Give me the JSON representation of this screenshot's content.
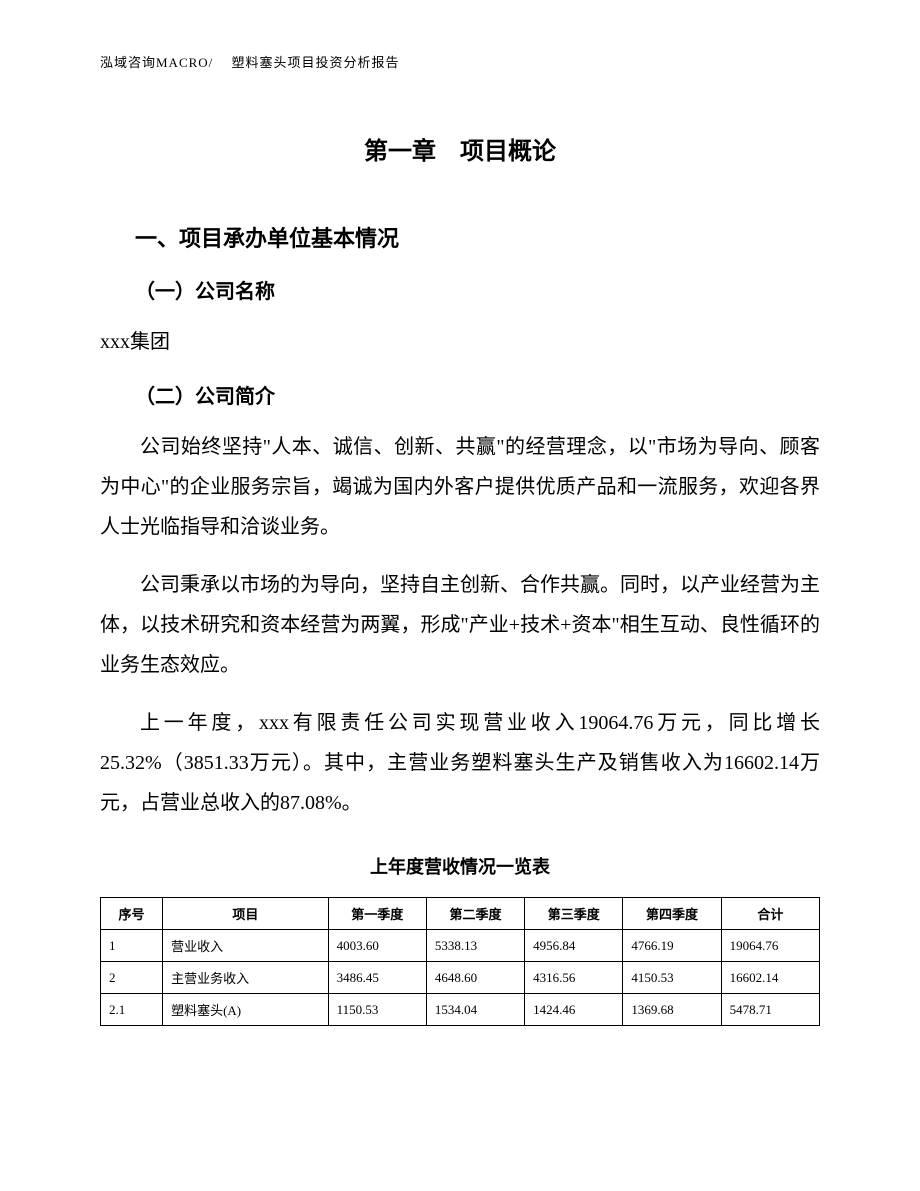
{
  "header": "泓域咨询MACRO/　 塑料塞头项目投资分析报告",
  "chapter_title": "第一章　项目概论",
  "section1_title": "一、项目承办单位基本情况",
  "subsection1_title": "（一）公司名称",
  "company_name": "xxx集团",
  "subsection2_title": "（二）公司简介",
  "paragraph1": "公司始终坚持\"人本、诚信、创新、共赢\"的经营理念，以\"市场为导向、顾客为中心\"的企业服务宗旨，竭诚为国内外客户提供优质产品和一流服务，欢迎各界人士光临指导和洽谈业务。",
  "paragraph2": "公司秉承以市场的为导向，坚持自主创新、合作共赢。同时，以产业经营为主体，以技术研究和资本经营为两翼，形成\"产业+技术+资本\"相生互动、良性循环的业务生态效应。",
  "paragraph3": "上一年度，xxx有限责任公司实现营业收入19064.76万元，同比增长25.32%（3851.33万元）。其中，主营业务塑料塞头生产及销售收入为16602.14万元，占营业总收入的87.08%。",
  "table_title": "上年度营收情况一览表",
  "table": {
    "columns": [
      "序号",
      "项目",
      "第一季度",
      "第二季度",
      "第三季度",
      "第四季度",
      "合计"
    ],
    "rows": [
      [
        "1",
        "营业收入",
        "4003.60",
        "5338.13",
        "4956.84",
        "4766.19",
        "19064.76"
      ],
      [
        "2",
        "主营业务收入",
        "3486.45",
        "4648.60",
        "4316.56",
        "4150.53",
        "16602.14"
      ],
      [
        "2.1",
        "塑料塞头(A)",
        "1150.53",
        "1534.04",
        "1424.46",
        "1369.68",
        "5478.71"
      ]
    ]
  }
}
